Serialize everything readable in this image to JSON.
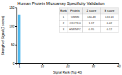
{
  "chart_data": {
    "type": "bar",
    "title": "Human Protein Microarray Specificity Validation",
    "x_label": "Signal Rank (Top 40)",
    "y_label": "Strength of Signal (Z scores)",
    "x": [
      1
    ],
    "values": [
      130.48
    ],
    "color": "#55bbee",
    "xlim": [
      0,
      40
    ],
    "ylim": [
      0,
      150
    ],
    "xticks": [
      1,
      10,
      20,
      30,
      40
    ],
    "yticks": [
      0,
      50,
      100,
      150
    ],
    "grid": false,
    "table": [
      [
        "Rank",
        "Protein",
        "Z score",
        "S score"
      ],
      [
        "1",
        "GMNN",
        "130.48",
        "133.13"
      ],
      [
        "2",
        "CXCT3.0",
        "1.37",
        "0.42"
      ],
      [
        "3",
        "HNRNPC",
        "0.95",
        "0.12"
      ]
    ]
  }
}
